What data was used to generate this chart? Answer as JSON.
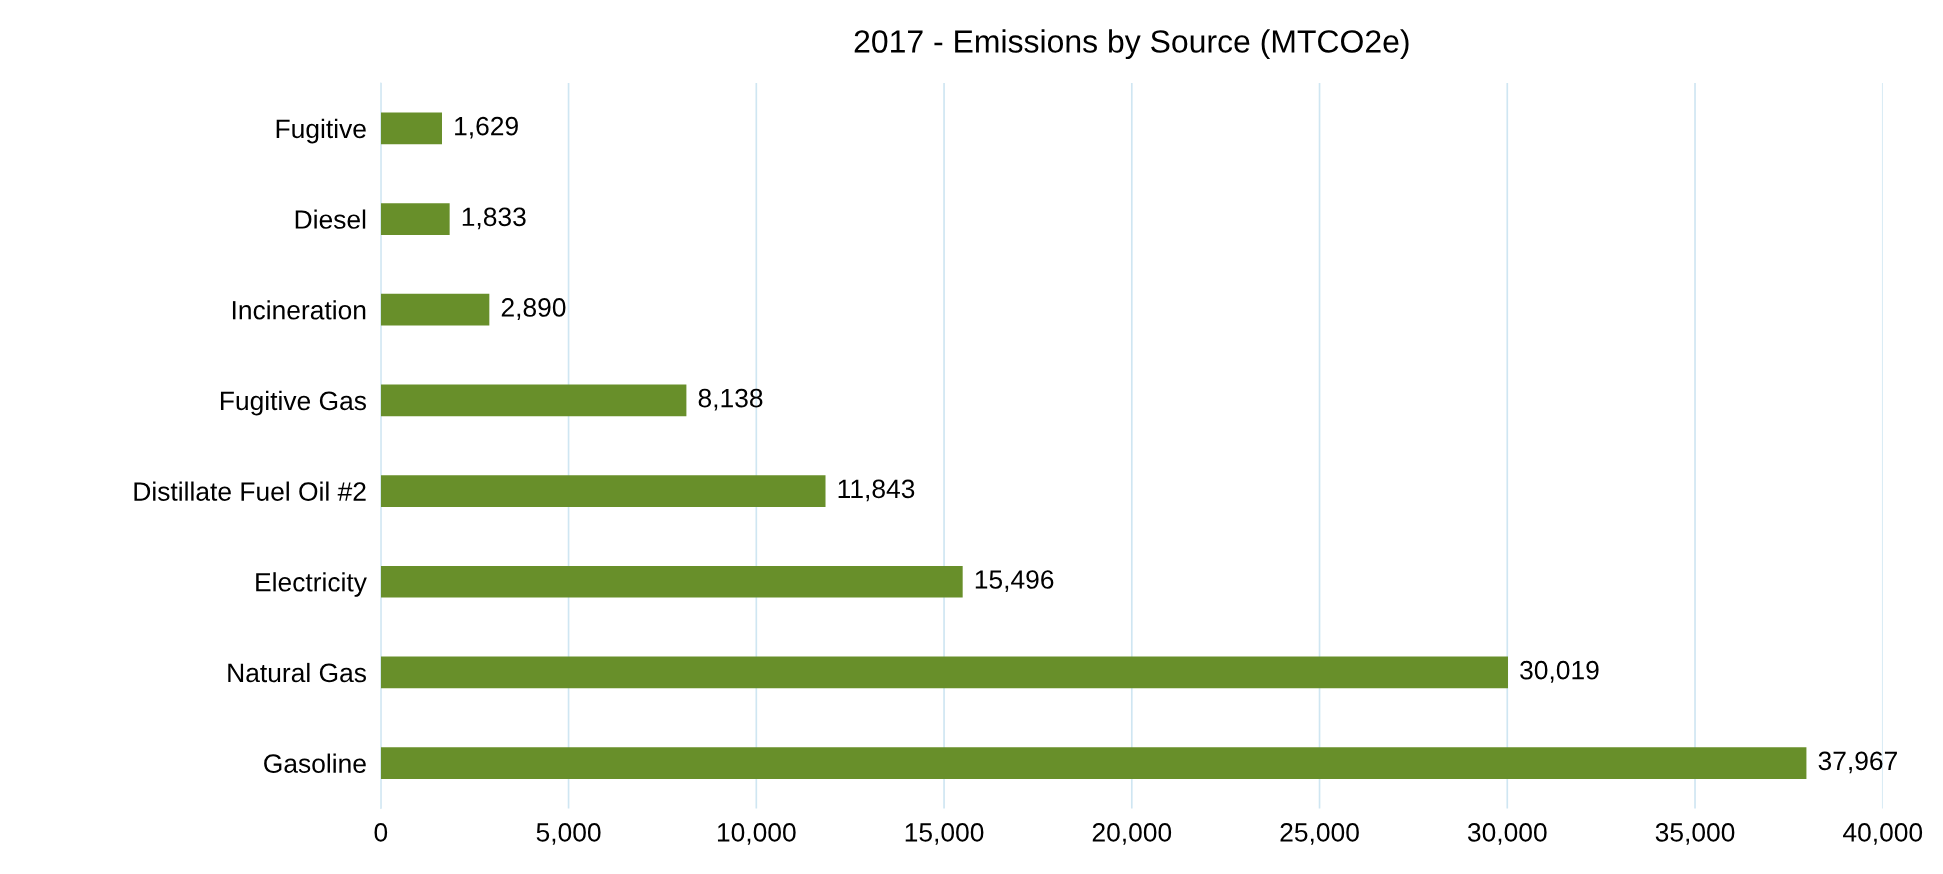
{
  "chart_data": {
    "type": "bar",
    "orientation": "horizontal",
    "title": "2017 - Emissions by Source (MTCO2e)",
    "categories": [
      "Fugitive",
      "Diesel",
      "Incineration",
      "Fugitive Gas",
      "Distillate Fuel Oil #2",
      "Electricity",
      "Natural Gas",
      "Gasoline"
    ],
    "values": [
      1629,
      1833,
      2890,
      8138,
      11843,
      15496,
      30019,
      37967
    ],
    "value_labels": [
      "1,629",
      "1,833",
      "2,890",
      "8,138",
      "11,843",
      "15,496",
      "30,019",
      "37,967"
    ],
    "color": "#688f2a",
    "xlim": [
      0,
      40000
    ],
    "xticks": [
      0,
      {
        "value": 5000,
        "label": "5,000"
      },
      {
        "value": 10000,
        "label": "10,000"
      },
      {
        "value": 15000,
        "label": "15,000"
      },
      {
        "value": 20000,
        "label": "20,000"
      },
      {
        "value": 25000,
        "label": "25,000"
      },
      {
        "value": 30000,
        "label": "30,000"
      },
      {
        "value": 35000,
        "label": "35,000"
      },
      {
        "value": 40000,
        "label": "40,000"
      }
    ],
    "grid": "x"
  }
}
